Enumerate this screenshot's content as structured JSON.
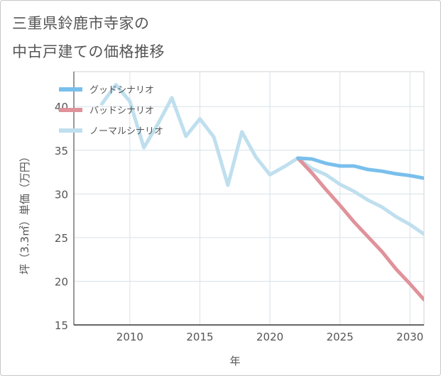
{
  "title_lines": [
    "三重県鈴鹿市寺家の",
    "中古戸建ての価格推移"
  ],
  "chart_data": {
    "type": "line",
    "title": "三重県鈴鹿市寺家の中古戸建ての価格推移",
    "xlabel": "年",
    "ylabel": "坪（3.3㎡）単価（万円）",
    "xlim": [
      2006,
      2031
    ],
    "ylim": [
      15,
      44
    ],
    "xticks": [
      2010,
      2015,
      2020,
      2025,
      2030
    ],
    "yticks": [
      15,
      20,
      25,
      30,
      35,
      40
    ],
    "grid": true,
    "legend_position": "top-left",
    "series": [
      {
        "name": "グッドシナリオ",
        "color": "#79bfec",
        "x": [
          2022,
          2023,
          2024,
          2025,
          2026,
          2027,
          2028,
          2029,
          2030,
          2031
        ],
        "values": [
          34.1,
          34.0,
          33.5,
          33.2,
          33.2,
          32.8,
          32.6,
          32.3,
          32.1,
          31.8
        ]
      },
      {
        "name": "バッドシナリオ",
        "color": "#e0929a",
        "x": [
          2022,
          2023,
          2024,
          2025,
          2026,
          2027,
          2028,
          2029,
          2030,
          2031
        ],
        "values": [
          34.1,
          32.4,
          30.5,
          28.7,
          26.8,
          25.1,
          23.4,
          21.4,
          19.7,
          17.9
        ]
      },
      {
        "name": "ノーマルシナリオ",
        "color": "#bfdfee",
        "x": [
          2008,
          2009,
          2010,
          2011,
          2012,
          2013,
          2014,
          2015,
          2016,
          2017,
          2018,
          2019,
          2020,
          2021,
          2022,
          2023,
          2024,
          2025,
          2026,
          2027,
          2028,
          2029,
          2030,
          2031
        ],
        "values": [
          40.3,
          42.5,
          40.6,
          35.3,
          38.0,
          41.0,
          36.6,
          38.6,
          36.5,
          31.0,
          37.1,
          34.2,
          32.2,
          33.1,
          34.1,
          32.9,
          32.2,
          31.1,
          30.3,
          29.3,
          28.5,
          27.4,
          26.5,
          25.4
        ]
      }
    ]
  }
}
